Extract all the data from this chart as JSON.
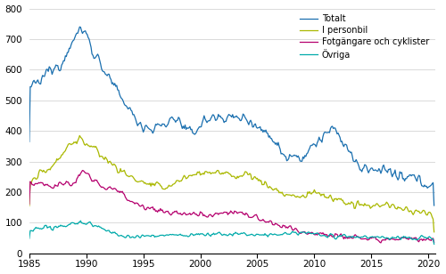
{
  "title": "",
  "xlabel": "",
  "ylabel": "",
  "xlim": [
    1985.0,
    2020.583
  ],
  "ylim": [
    0,
    800
  ],
  "yticks": [
    0,
    100,
    200,
    300,
    400,
    500,
    600,
    700,
    800
  ],
  "xticks": [
    1985,
    1990,
    1995,
    2000,
    2005,
    2010,
    2015,
    2020
  ],
  "legend_labels": [
    "Totalt",
    "I personbil",
    "Fotgängare och cyklister",
    "Övriga"
  ],
  "colors": {
    "Totalt": "#1a6faf",
    "I personbil": "#aab800",
    "Fotgangare": "#b5006e",
    "Ovriga": "#00aaaa"
  },
  "background": "#ffffff",
  "grid_color": "#cccccc"
}
